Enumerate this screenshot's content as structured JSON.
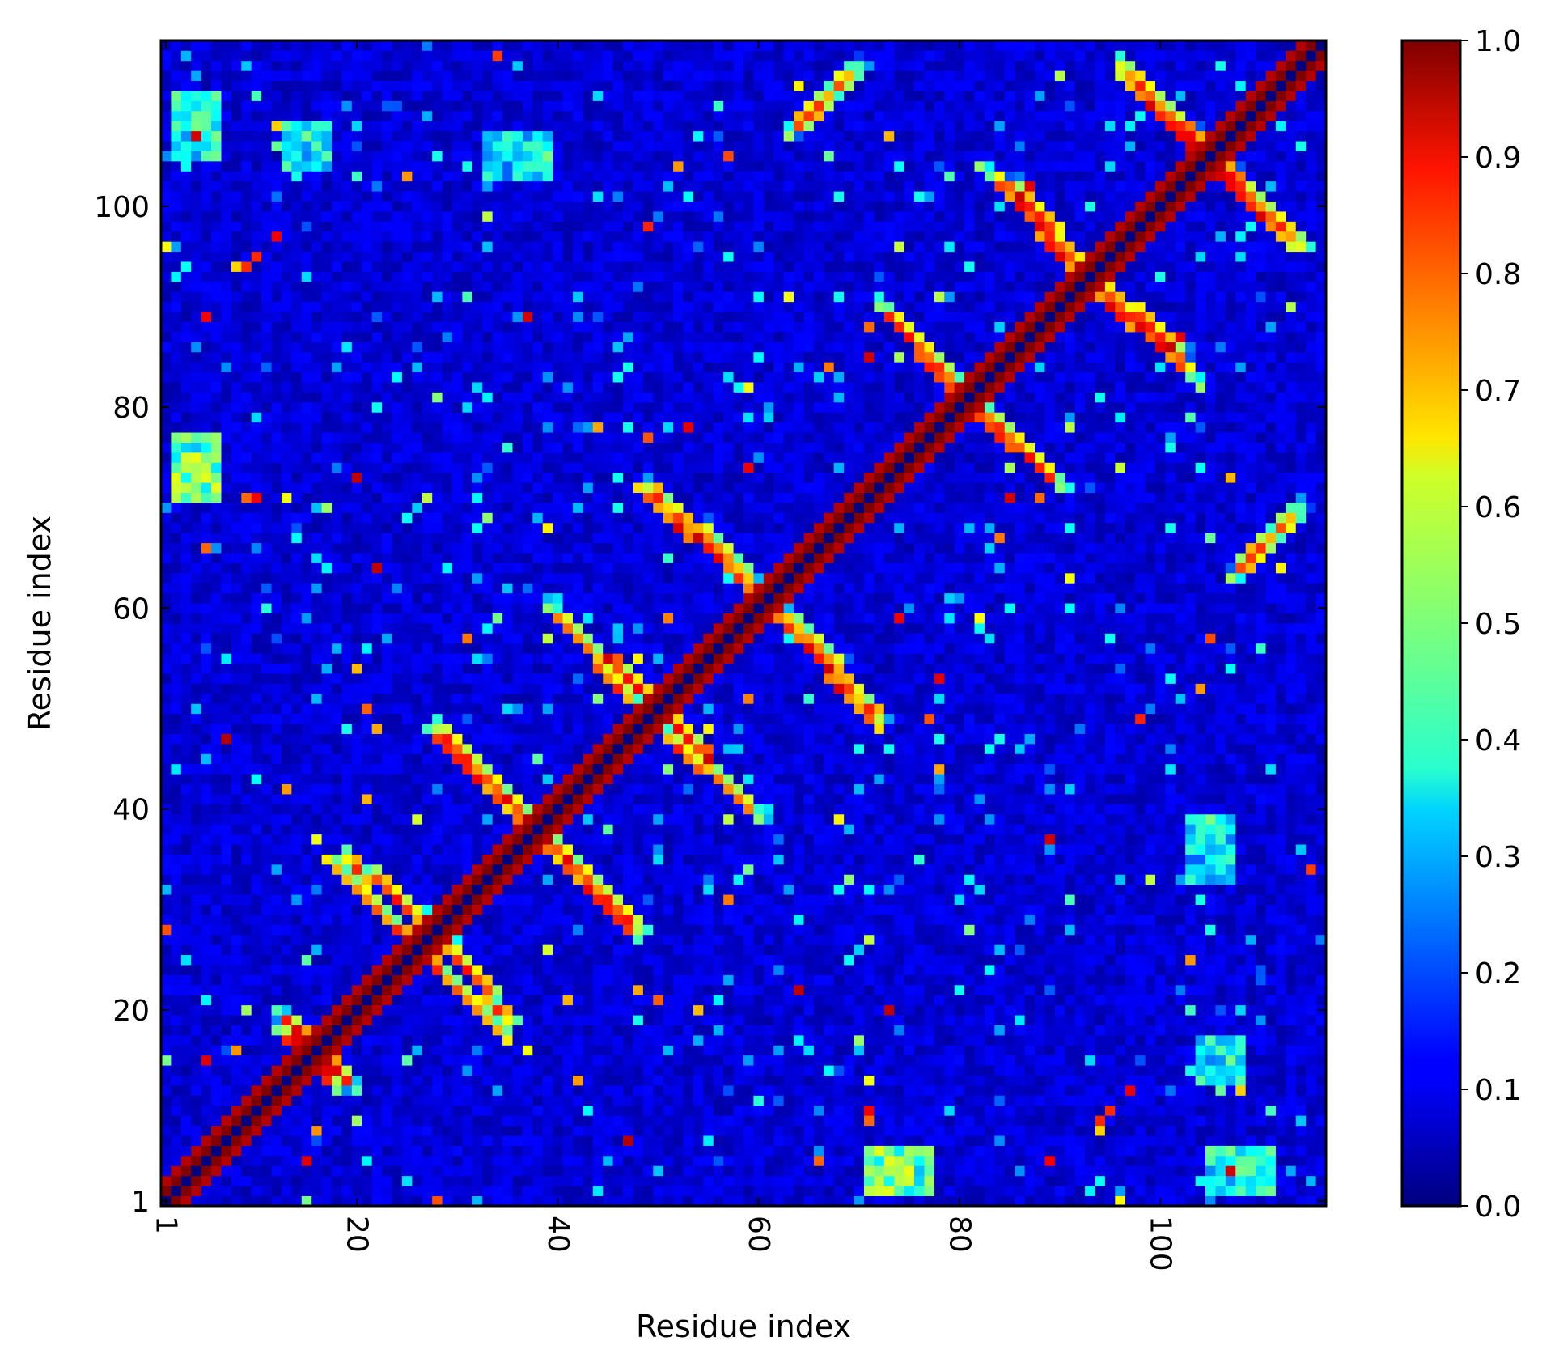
{
  "chart_data": {
    "type": "heatmap",
    "title": "",
    "xlabel": "Residue index",
    "ylabel": "Residue index",
    "n_residues": 116,
    "xlim": [
      1,
      116
    ],
    "ylim": [
      1,
      116
    ],
    "x_ticks": [
      1,
      20,
      40,
      60,
      80,
      100
    ],
    "y_ticks": [
      1,
      20,
      40,
      60,
      80,
      100
    ],
    "tick_labels": [
      "1",
      "20",
      "40",
      "60",
      "80",
      "100"
    ],
    "colormap": "jet",
    "colorbar": {
      "range": [
        0.0,
        1.0
      ],
      "ticks": [
        0.0,
        0.1,
        0.2,
        0.3,
        0.4,
        0.5,
        0.6,
        0.7,
        0.8,
        0.9,
        1.0
      ],
      "tick_labels": [
        "0.0",
        "0.1",
        "0.2",
        "0.3",
        "0.4",
        "0.5",
        "0.6",
        "0.7",
        "0.8",
        "0.9",
        "1.0"
      ]
    },
    "grid": false,
    "diagonal": {
      "from": 1,
      "to": 116,
      "value": 1.0,
      "self_value": 0.0
    },
    "bands": [
      {
        "start": [
          2,
          2
        ],
        "end": [
          18,
          18
        ],
        "dir": "parallel",
        "offset": 2,
        "value": 0.95
      },
      {
        "start": [
          12,
          20
        ],
        "end": [
          18,
          12
        ],
        "dir": "anti",
        "value": 0.95
      },
      {
        "start": [
          17,
          35
        ],
        "end": [
          28,
          24
        ],
        "dir": "anti",
        "value": 0.93
      },
      {
        "start": [
          26,
          30
        ],
        "end": [
          35,
          19
        ],
        "dir": "anti",
        "value": 0.9
      },
      {
        "start": [
          27,
          48
        ],
        "end": [
          38,
          38
        ],
        "dir": "anti",
        "value": 0.92
      },
      {
        "start": [
          38,
          37
        ],
        "end": [
          48,
          28
        ],
        "dir": "anti",
        "value": 0.9
      },
      {
        "start": [
          39,
          60
        ],
        "end": [
          50,
          50
        ],
        "dir": "anti",
        "value": 0.93
      },
      {
        "start": [
          50,
          48
        ],
        "end": [
          60,
          39
        ],
        "dir": "anti",
        "value": 0.9
      },
      {
        "start": [
          48,
          72
        ],
        "end": [
          60,
          61
        ],
        "dir": "anti",
        "value": 0.95
      },
      {
        "start": [
          62,
          60
        ],
        "end": [
          72,
          49
        ],
        "dir": "anti",
        "value": 0.9
      },
      {
        "start": [
          72,
          90
        ],
        "end": [
          80,
          82
        ],
        "dir": "anti",
        "value": 0.95
      },
      {
        "start": [
          81,
          80
        ],
        "end": [
          90,
          72
        ],
        "dir": "anti",
        "value": 0.92
      },
      {
        "start": [
          84,
          103
        ],
        "end": [
          93,
          93
        ],
        "dir": "anti",
        "value": 0.95
      },
      {
        "start": [
          93,
          92
        ],
        "end": [
          103,
          83
        ],
        "dir": "anti",
        "value": 0.92
      },
      {
        "start": [
          96,
          113
        ],
        "end": [
          114,
          96
        ],
        "dir": "anti",
        "value": 0.93
      },
      {
        "start": [
          107,
          63
        ],
        "end": [
          114,
          70
        ],
        "dir": "parallel",
        "value": 0.85
      },
      {
        "start": [
          63,
          107
        ],
        "end": [
          70,
          114
        ],
        "dir": "parallel",
        "value": 0.85
      }
    ],
    "patches": [
      {
        "x": [
          2,
          6
        ],
        "y": [
          105,
          111
        ],
        "value": 0.45
      },
      {
        "x": [
          105,
          111
        ],
        "y": [
          2,
          6
        ],
        "value": 0.45
      },
      {
        "x": [
          2,
          6
        ],
        "y": [
          71,
          77
        ],
        "value": 0.55
      },
      {
        "x": [
          71,
          77
        ],
        "y": [
          2,
          6
        ],
        "value": 0.55
      },
      {
        "x": [
          33,
          39
        ],
        "y": [
          103,
          107
        ],
        "value": 0.4
      },
      {
        "x": [
          103,
          107
        ],
        "y": [
          33,
          39
        ],
        "value": 0.4
      },
      {
        "x": [
          73,
          77
        ],
        "y": [
          2,
          6
        ],
        "value": 0.5
      },
      {
        "x": [
          104,
          108
        ],
        "y": [
          13,
          17
        ],
        "value": 0.45
      }
    ]
  }
}
